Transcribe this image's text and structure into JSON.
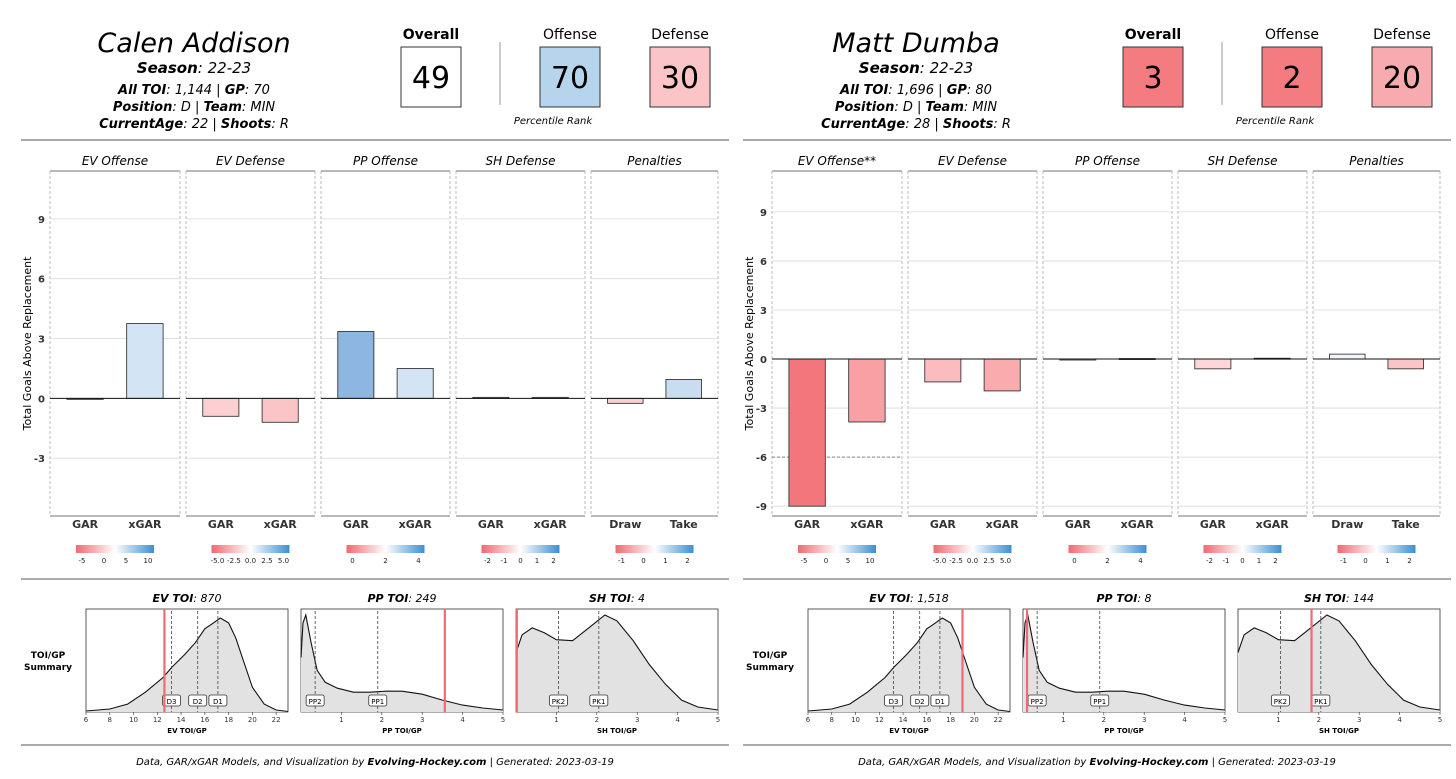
{
  "chart_data": [
    {
      "type": "bar",
      "player": {
        "name": "Calen Addison",
        "season_label": "Season",
        "season": "22-23",
        "toi_label": "All TOI",
        "toi": "1,144",
        "gp_label": "GP",
        "gp": "70",
        "position_label": "Position",
        "position": "D",
        "team_label": "Team",
        "team": "MIN",
        "age_label": "CurrentAge",
        "age": "22",
        "shoots_label": "Shoots",
        "shoots": "R"
      },
      "ratings": [
        {
          "label": "Overall",
          "value": 49,
          "color": "#ffffff",
          "bold": true
        },
        {
          "label": "Offense",
          "value": 70,
          "color": "#b6d4ec",
          "bold": false
        },
        {
          "label": "Defense",
          "value": 30,
          "color": "#fbc4c6",
          "bold": false
        }
      ],
      "percentile_caption": "Percentile Rank",
      "ylabel": "Total Goals Above Replacement",
      "ylim": [
        -5.9,
        11.4
      ],
      "yticks": [
        -3,
        0,
        3,
        6,
        9
      ],
      "panels": [
        {
          "title": "EV Offense",
          "categories": [
            "GAR",
            "xGAR"
          ],
          "values": [
            -0.05,
            3.75
          ],
          "colors": [
            "#f7dadb",
            "#d3e4f4"
          ],
          "legend": {
            "ticks": [
              "-5",
              "0",
              "5",
              "10"
            ]
          }
        },
        {
          "title": "EV Defense",
          "categories": [
            "GAR",
            "xGAR"
          ],
          "values": [
            -0.9,
            -1.2
          ],
          "colors": [
            "#fcd0d2",
            "#fbc5c7"
          ],
          "legend": {
            "ticks": [
              "-5.0",
              "-2.5",
              "0.0",
              "2.5",
              "5.0"
            ]
          }
        },
        {
          "title": "PP Offense",
          "categories": [
            "GAR",
            "xGAR"
          ],
          "values": [
            3.35,
            1.5
          ],
          "colors": [
            "#8db7e0",
            "#d3e4f4"
          ],
          "legend": {
            "ticks": [
              "0",
              "2",
              "4"
            ]
          }
        },
        {
          "title": "SH Defense",
          "categories": [
            "GAR",
            "xGAR"
          ],
          "values": [
            0.05,
            0.05
          ],
          "colors": [
            "#ffffff",
            "#ffffff"
          ],
          "legend": {
            "ticks": [
              "-2",
              "-1",
              "0",
              "1",
              "2"
            ]
          }
        },
        {
          "title": "Penalties",
          "categories": [
            "Draw",
            "Take"
          ],
          "values": [
            -0.25,
            0.95
          ],
          "colors": [
            "#fcd0d2",
            "#c9ddf1"
          ],
          "legend": {
            "ticks": [
              "-1",
              "0",
              "1",
              "2"
            ]
          }
        }
      ],
      "summary_label": [
        "TOI/GP",
        "Summary"
      ],
      "toi_panels": [
        {
          "title_label": "EV TOI",
          "title_value": "870",
          "xlabel": "EV TOI/GP",
          "xlim": [
            6,
            23
          ],
          "xticks": [
            "6",
            "8",
            "10",
            "12",
            "14",
            "16",
            "18",
            "20",
            "22"
          ],
          "xtick_values": [
            6,
            8,
            10,
            12,
            14,
            16,
            18,
            20,
            22
          ],
          "density": [
            [
              6,
              0.01
            ],
            [
              8,
              0.03
            ],
            [
              9.5,
              0.08
            ],
            [
              11,
              0.2
            ],
            [
              12.5,
              0.35
            ],
            [
              13.2,
              0.45
            ],
            [
              14.3,
              0.58
            ],
            [
              15.2,
              0.7
            ],
            [
              16,
              0.84
            ],
            [
              16.6,
              0.89
            ],
            [
              17.3,
              0.95
            ],
            [
              18,
              0.9
            ],
            [
              18.6,
              0.75
            ],
            [
              19.3,
              0.5
            ],
            [
              20,
              0.25
            ],
            [
              21,
              0.08
            ],
            [
              22,
              0.02
            ],
            [
              23,
              0.005
            ]
          ],
          "lines": [
            {
              "label": "D3",
              "x": 13.2
            },
            {
              "label": "D2",
              "x": 15.4
            },
            {
              "label": "D1",
              "x": 17.1
            }
          ],
          "player_x": 12.6
        },
        {
          "title_label": "PP TOI",
          "title_value": "249",
          "xlabel": "PP TOI/GP",
          "xlim": [
            0,
            5
          ],
          "xticks": [
            "1",
            "2",
            "3",
            "4",
            "5"
          ],
          "xtick_values": [
            1,
            2,
            3,
            4,
            5
          ],
          "density": [
            [
              0,
              0.55
            ],
            [
              0.05,
              0.9
            ],
            [
              0.12,
              0.98
            ],
            [
              0.25,
              0.7
            ],
            [
              0.4,
              0.42
            ],
            [
              0.6,
              0.3
            ],
            [
              0.9,
              0.24
            ],
            [
              1.3,
              0.2
            ],
            [
              1.7,
              0.2
            ],
            [
              2.1,
              0.21
            ],
            [
              2.5,
              0.21
            ],
            [
              3.0,
              0.18
            ],
            [
              3.5,
              0.12
            ],
            [
              4.0,
              0.07
            ],
            [
              4.5,
              0.04
            ],
            [
              5,
              0.02
            ]
          ],
          "lines": [
            {
              "label": "PP2",
              "x": 0.35
            },
            {
              "label": "PP1",
              "x": 1.9
            }
          ],
          "player_x": 3.56
        },
        {
          "title_label": "SH TOI",
          "title_value": "4",
          "xlabel": "SH TOI/GP",
          "xlim": [
            0,
            5
          ],
          "xticks": [
            "1",
            "2",
            "3",
            "4",
            "5"
          ],
          "xtick_values": [
            1,
            2,
            3,
            4,
            5
          ],
          "density": [
            [
              0,
              0.6
            ],
            [
              0.15,
              0.78
            ],
            [
              0.4,
              0.85
            ],
            [
              0.7,
              0.8
            ],
            [
              1.0,
              0.73
            ],
            [
              1.4,
              0.72
            ],
            [
              1.8,
              0.85
            ],
            [
              2.2,
              0.98
            ],
            [
              2.5,
              0.92
            ],
            [
              2.9,
              0.72
            ],
            [
              3.3,
              0.48
            ],
            [
              3.7,
              0.28
            ],
            [
              4.1,
              0.12
            ],
            [
              4.5,
              0.05
            ],
            [
              5,
              0.02
            ]
          ],
          "lines": [
            {
              "label": "PK2",
              "x": 1.05
            },
            {
              "label": "PK1",
              "x": 2.05
            }
          ],
          "player_x": 0.02
        }
      ],
      "footer": {
        "text": "Data, GAR/xGAR Models, and Visualization by",
        "brand": "Evolving-Hockey.com",
        "generated_label": "Generated",
        "generated": "2023-03-19"
      }
    },
    {
      "type": "bar",
      "player": {
        "name": "Matt Dumba",
        "season_label": "Season",
        "season": "22-23",
        "toi_label": "All TOI",
        "toi": "1,696",
        "gp_label": "GP",
        "gp": "80",
        "position_label": "Position",
        "position": "D",
        "team_label": "Team",
        "team": "MIN",
        "age_label": "CurrentAge",
        "age": "28",
        "shoots_label": "Shoots",
        "shoots": "R"
      },
      "ratings": [
        {
          "label": "Overall",
          "value": 3,
          "color": "#f47b80",
          "bold": true
        },
        {
          "label": "Offense",
          "value": 2,
          "color": "#f47b80",
          "bold": false
        },
        {
          "label": "Defense",
          "value": 20,
          "color": "#f8abae",
          "bold": false
        }
      ],
      "percentile_caption": "Percentile Rank",
      "ylabel": "Total Goals Above Replacement",
      "ylim": [
        -9.6,
        11.5
      ],
      "yticks": [
        -9,
        -6,
        -3,
        0,
        3,
        6,
        9
      ],
      "panels": [
        {
          "title": "EV Offense**",
          "categories": [
            "GAR",
            "xGAR"
          ],
          "values": [
            -9.0,
            -3.85
          ],
          "colors": [
            "#f2767b",
            "#f8a0a4"
          ],
          "legend": {
            "ticks": [
              "-5",
              "0",
              "5",
              "10"
            ]
          },
          "dashed_y": -6
        },
        {
          "title": "EV Defense",
          "categories": [
            "GAR",
            "xGAR"
          ],
          "values": [
            -1.4,
            -1.95
          ],
          "colors": [
            "#fbbcbf",
            "#f9abae"
          ],
          "legend": {
            "ticks": [
              "-5.0",
              "-2.5",
              "0.0",
              "2.5",
              "5.0"
            ]
          }
        },
        {
          "title": "PP Offense",
          "categories": [
            "GAR",
            "xGAR"
          ],
          "values": [
            -0.05,
            0.03
          ],
          "colors": [
            "#ffffff",
            "#ffffff"
          ],
          "legend": {
            "ticks": [
              "0",
              "2",
              "4"
            ]
          }
        },
        {
          "title": "SH Defense",
          "categories": [
            "GAR",
            "xGAR"
          ],
          "values": [
            -0.6,
            0.05
          ],
          "colors": [
            "#fcd6d8",
            "#ffffff"
          ],
          "legend": {
            "ticks": [
              "-2",
              "-1",
              "0",
              "1",
              "2"
            ]
          }
        },
        {
          "title": "Penalties",
          "categories": [
            "Draw",
            "Take"
          ],
          "values": [
            0.3,
            -0.6
          ],
          "colors": [
            "#f2f6fb",
            "#fbc5c7"
          ],
          "legend": {
            "ticks": [
              "-1",
              "0",
              "1",
              "2"
            ]
          }
        }
      ],
      "summary_label": [
        "TOI/GP",
        "Summary"
      ],
      "toi_panels": [
        {
          "title_label": "EV TOI",
          "title_value": "1,518",
          "xlabel": "EV TOI/GP",
          "xlim": [
            6,
            23
          ],
          "xticks": [
            "6",
            "8",
            "10",
            "12",
            "14",
            "16",
            "18",
            "20",
            "22"
          ],
          "xtick_values": [
            6,
            8,
            10,
            12,
            14,
            16,
            18,
            20,
            22
          ],
          "density": [
            [
              6,
              0.01
            ],
            [
              8,
              0.03
            ],
            [
              9.5,
              0.08
            ],
            [
              11,
              0.2
            ],
            [
              12.5,
              0.35
            ],
            [
              13.2,
              0.45
            ],
            [
              14.3,
              0.58
            ],
            [
              15.2,
              0.7
            ],
            [
              16,
              0.84
            ],
            [
              16.6,
              0.89
            ],
            [
              17.3,
              0.95
            ],
            [
              18,
              0.9
            ],
            [
              18.6,
              0.75
            ],
            [
              19.3,
              0.5
            ],
            [
              20,
              0.25
            ],
            [
              21,
              0.08
            ],
            [
              22,
              0.02
            ],
            [
              23,
              0.005
            ]
          ],
          "lines": [
            {
              "label": "D3",
              "x": 13.2
            },
            {
              "label": "D2",
              "x": 15.4
            },
            {
              "label": "D1",
              "x": 17.1
            }
          ],
          "player_x": 19.0
        },
        {
          "title_label": "PP TOI",
          "title_value": "8",
          "xlabel": "PP TOI/GP",
          "xlim": [
            0,
            5
          ],
          "xticks": [
            "1",
            "2",
            "3",
            "4",
            "5"
          ],
          "xtick_values": [
            1,
            2,
            3,
            4,
            5
          ],
          "density": [
            [
              0,
              0.55
            ],
            [
              0.05,
              0.9
            ],
            [
              0.12,
              0.98
            ],
            [
              0.25,
              0.7
            ],
            [
              0.4,
              0.42
            ],
            [
              0.6,
              0.3
            ],
            [
              0.9,
              0.24
            ],
            [
              1.3,
              0.2
            ],
            [
              1.7,
              0.2
            ],
            [
              2.1,
              0.21
            ],
            [
              2.5,
              0.21
            ],
            [
              3.0,
              0.18
            ],
            [
              3.5,
              0.12
            ],
            [
              4.0,
              0.07
            ],
            [
              4.5,
              0.04
            ],
            [
              5,
              0.02
            ]
          ],
          "lines": [
            {
              "label": "PP2",
              "x": 0.35
            },
            {
              "label": "PP1",
              "x": 1.9
            }
          ],
          "player_x": 0.1
        },
        {
          "title_label": "SH TOI",
          "title_value": "144",
          "xlabel": "SH TOI/GP",
          "xlim": [
            0,
            5
          ],
          "xticks": [
            "1",
            "2",
            "3",
            "4",
            "5"
          ],
          "xtick_values": [
            1,
            2,
            3,
            4,
            5
          ],
          "density": [
            [
              0,
              0.6
            ],
            [
              0.15,
              0.78
            ],
            [
              0.4,
              0.85
            ],
            [
              0.7,
              0.8
            ],
            [
              1.0,
              0.73
            ],
            [
              1.4,
              0.72
            ],
            [
              1.8,
              0.85
            ],
            [
              2.2,
              0.98
            ],
            [
              2.5,
              0.92
            ],
            [
              2.9,
              0.72
            ],
            [
              3.3,
              0.48
            ],
            [
              3.7,
              0.28
            ],
            [
              4.1,
              0.12
            ],
            [
              4.5,
              0.05
            ],
            [
              5,
              0.02
            ]
          ],
          "lines": [
            {
              "label": "PK2",
              "x": 1.05
            },
            {
              "label": "PK1",
              "x": 2.05
            }
          ],
          "player_x": 1.82
        }
      ],
      "footer": {
        "text": "Data, GAR/xGAR Models, and Visualization by",
        "brand": "Evolving-Hockey.com",
        "generated_label": "Generated",
        "generated": "2023-03-19"
      }
    }
  ]
}
